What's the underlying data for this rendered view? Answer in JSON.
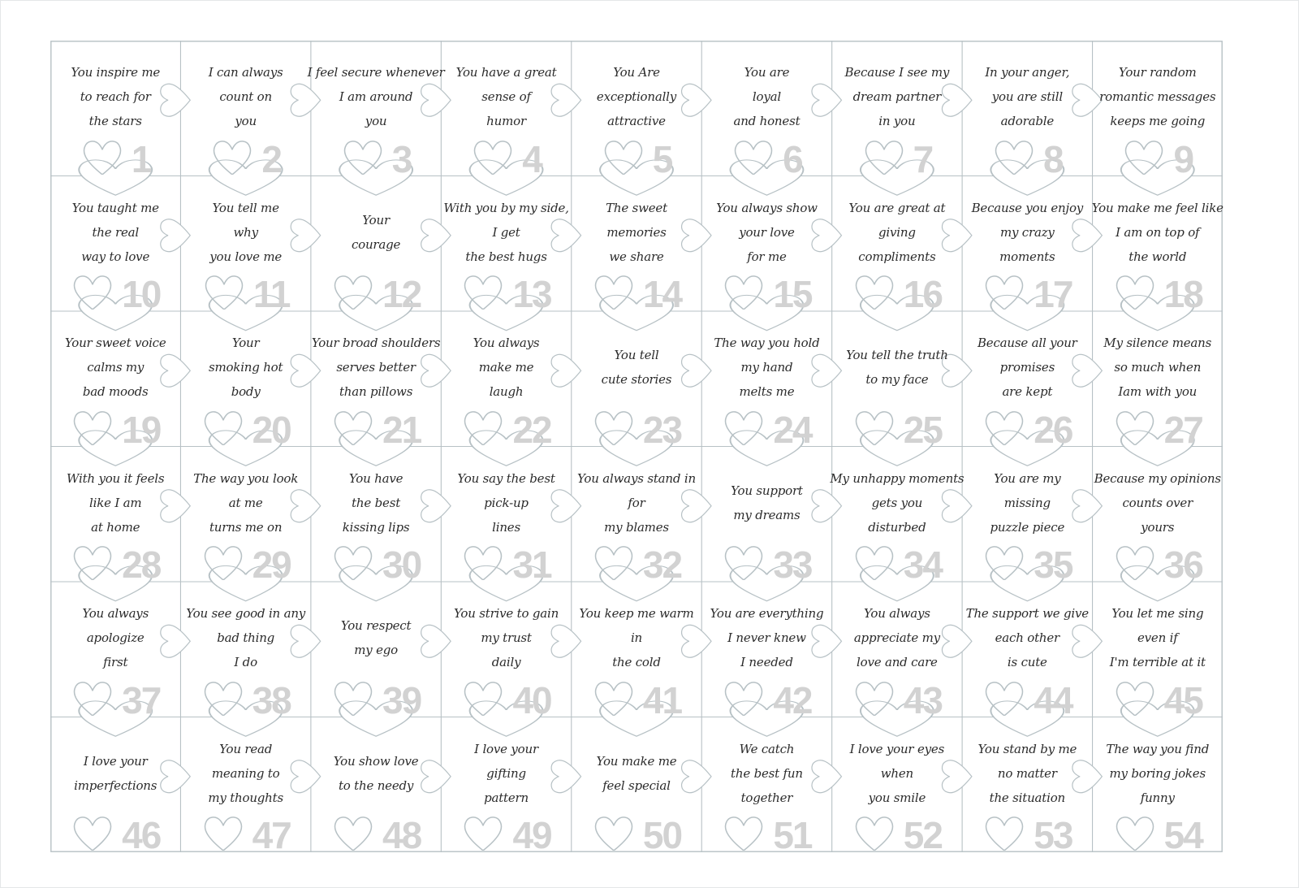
{
  "colors": {
    "background": "#ffffff",
    "outline": "#b7c1c5",
    "number": "#d2d2d2",
    "text": "#2b2b2b"
  },
  "puzzle": {
    "rows": 6,
    "columns": 9,
    "piece_decoration_icon": "heart-outline-icon",
    "pieces": [
      {
        "number": "1",
        "lines": [
          "You inspire me",
          "to reach for",
          "the stars"
        ]
      },
      {
        "number": "2",
        "lines": [
          "I can always",
          "count on",
          "you"
        ]
      },
      {
        "number": "3",
        "lines": [
          "I feel secure whenever",
          "I am around",
          "you"
        ]
      },
      {
        "number": "4",
        "lines": [
          "You have a great",
          "sense of",
          "humor"
        ]
      },
      {
        "number": "5",
        "lines": [
          "You Are",
          "exceptionally",
          "attractive"
        ]
      },
      {
        "number": "6",
        "lines": [
          "You are",
          "loyal",
          "and honest"
        ]
      },
      {
        "number": "7",
        "lines": [
          "Because I see my",
          "dream partner",
          "in you"
        ]
      },
      {
        "number": "8",
        "lines": [
          "In your anger,",
          "you are still",
          "adorable"
        ]
      },
      {
        "number": "9",
        "lines": [
          "Your random",
          "romantic messages",
          "keeps me going"
        ]
      },
      {
        "number": "10",
        "lines": [
          "You taught me",
          "the real",
          "way to love"
        ]
      },
      {
        "number": "11",
        "lines": [
          "You tell me",
          "why",
          "you love me"
        ]
      },
      {
        "number": "12",
        "lines": [
          "Your",
          "courage"
        ]
      },
      {
        "number": "13",
        "lines": [
          "With you by my side,",
          "I get",
          "the best hugs"
        ]
      },
      {
        "number": "14",
        "lines": [
          "The sweet",
          "memories",
          "we share"
        ]
      },
      {
        "number": "15",
        "lines": [
          "You always show",
          "your love",
          "for me"
        ]
      },
      {
        "number": "16",
        "lines": [
          "You are great at",
          "giving",
          "compliments"
        ]
      },
      {
        "number": "17",
        "lines": [
          "Because you enjoy",
          "my crazy",
          "moments"
        ]
      },
      {
        "number": "18",
        "lines": [
          "You make me feel like",
          "I am on top of",
          "the world"
        ]
      },
      {
        "number": "19",
        "lines": [
          "Your sweet voice",
          "calms my",
          "bad moods"
        ]
      },
      {
        "number": "20",
        "lines": [
          "Your",
          "smoking hot",
          "body"
        ]
      },
      {
        "number": "21",
        "lines": [
          "Your broad shoulders",
          "serves better",
          "than pillows"
        ]
      },
      {
        "number": "22",
        "lines": [
          "You always",
          "make me",
          "laugh"
        ]
      },
      {
        "number": "23",
        "lines": [
          "You tell",
          "cute stories"
        ]
      },
      {
        "number": "24",
        "lines": [
          "The way you hold",
          "my hand",
          "melts me"
        ]
      },
      {
        "number": "25",
        "lines": [
          "You tell the truth",
          "to my face"
        ]
      },
      {
        "number": "26",
        "lines": [
          "Because all your",
          "promises",
          "are kept"
        ]
      },
      {
        "number": "27",
        "lines": [
          "My silence means",
          "so much when",
          "Iam with you"
        ]
      },
      {
        "number": "28",
        "lines": [
          "With you it feels",
          "like I am",
          "at home"
        ]
      },
      {
        "number": "29",
        "lines": [
          "The way you look",
          "at me",
          "turns me on"
        ]
      },
      {
        "number": "30",
        "lines": [
          "You have",
          "the best",
          "kissing lips"
        ]
      },
      {
        "number": "31",
        "lines": [
          "You say the best",
          "pick-up",
          "lines"
        ]
      },
      {
        "number": "32",
        "lines": [
          "You always stand in",
          "for",
          "my blames"
        ]
      },
      {
        "number": "33",
        "lines": [
          "You support",
          "my dreams"
        ]
      },
      {
        "number": "34",
        "lines": [
          "My unhappy moments",
          "gets you",
          "disturbed"
        ]
      },
      {
        "number": "35",
        "lines": [
          "You are my",
          "missing",
          "puzzle piece"
        ]
      },
      {
        "number": "36",
        "lines": [
          "Because my opinions",
          "counts over",
          "yours"
        ]
      },
      {
        "number": "37",
        "lines": [
          "You always",
          "apologize",
          "first"
        ]
      },
      {
        "number": "38",
        "lines": [
          "You see good in any",
          "bad thing",
          "I do"
        ]
      },
      {
        "number": "39",
        "lines": [
          "You respect",
          "my ego"
        ]
      },
      {
        "number": "40",
        "lines": [
          "You strive to gain",
          "my trust",
          "daily"
        ]
      },
      {
        "number": "41",
        "lines": [
          "You keep me warm",
          "in",
          "the cold"
        ]
      },
      {
        "number": "42",
        "lines": [
          "You are everything",
          "I never knew",
          "I needed"
        ]
      },
      {
        "number": "43",
        "lines": [
          "You always",
          "appreciate my",
          "love and care"
        ]
      },
      {
        "number": "44",
        "lines": [
          "The support we give",
          "each other",
          "is cute"
        ]
      },
      {
        "number": "45",
        "lines": [
          "You let me sing",
          "even if",
          "I'm terrible at it"
        ]
      },
      {
        "number": "46",
        "lines": [
          "I love your",
          "imperfections"
        ]
      },
      {
        "number": "47",
        "lines": [
          "You read",
          "meaning to",
          "my thoughts"
        ]
      },
      {
        "number": "48",
        "lines": [
          "You show love",
          "to the needy"
        ]
      },
      {
        "number": "49",
        "lines": [
          "I love your",
          "gifting",
          "pattern"
        ]
      },
      {
        "number": "50",
        "lines": [
          "You make me",
          "feel special"
        ]
      },
      {
        "number": "51",
        "lines": [
          "We catch",
          "the best fun",
          "together"
        ]
      },
      {
        "number": "52",
        "lines": [
          "I love your eyes",
          "when",
          "you smile"
        ]
      },
      {
        "number": "53",
        "lines": [
          "You stand by me",
          "no matter",
          "the situation"
        ]
      },
      {
        "number": "54",
        "lines": [
          "The way you find",
          "my boring jokes",
          "funny"
        ]
      }
    ]
  }
}
